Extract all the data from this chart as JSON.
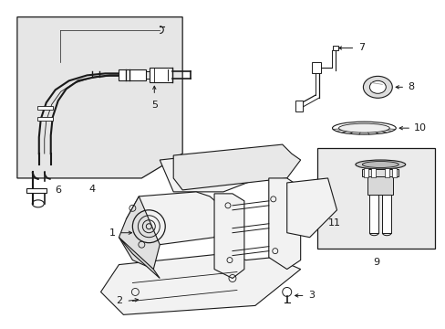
{
  "bg_color": "#ffffff",
  "line_color": "#1a1a1a",
  "label_color": "#000000",
  "box_left_fill": "#e6e6e6",
  "box_right_fill": "#ebebeb",
  "part_fill": "#f2f2f2",
  "white": "#ffffff"
}
